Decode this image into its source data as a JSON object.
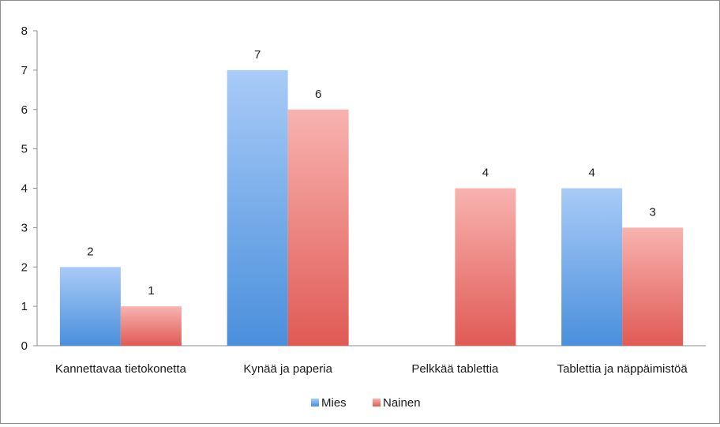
{
  "chart_data": {
    "type": "bar",
    "title": "",
    "xlabel": "",
    "ylabel": "",
    "categories": [
      "Kannettavaa tietokonetta",
      "Kynää ja paperia",
      "Pelkkää tablettia",
      "Tablettia ja näppäimistöä"
    ],
    "series": [
      {
        "name": "Mies",
        "values": [
          2,
          7,
          null,
          4
        ],
        "labels": [
          "2",
          "7",
          "",
          "4"
        ],
        "color_top": "#a9cbf7",
        "color_bottom": "#4a8fdc"
      },
      {
        "name": "Nainen",
        "values": [
          1,
          6,
          4,
          3
        ],
        "labels": [
          "1",
          "6",
          "4",
          "3"
        ],
        "color_top": "#f8b3b0",
        "color_bottom": "#e05a55"
      }
    ],
    "ylim": [
      0,
      8
    ],
    "yticks": [
      "0",
      "1",
      "2",
      "3",
      "4",
      "5",
      "6",
      "7",
      "8"
    ],
    "grid": false,
    "legend_position": "bottom"
  }
}
